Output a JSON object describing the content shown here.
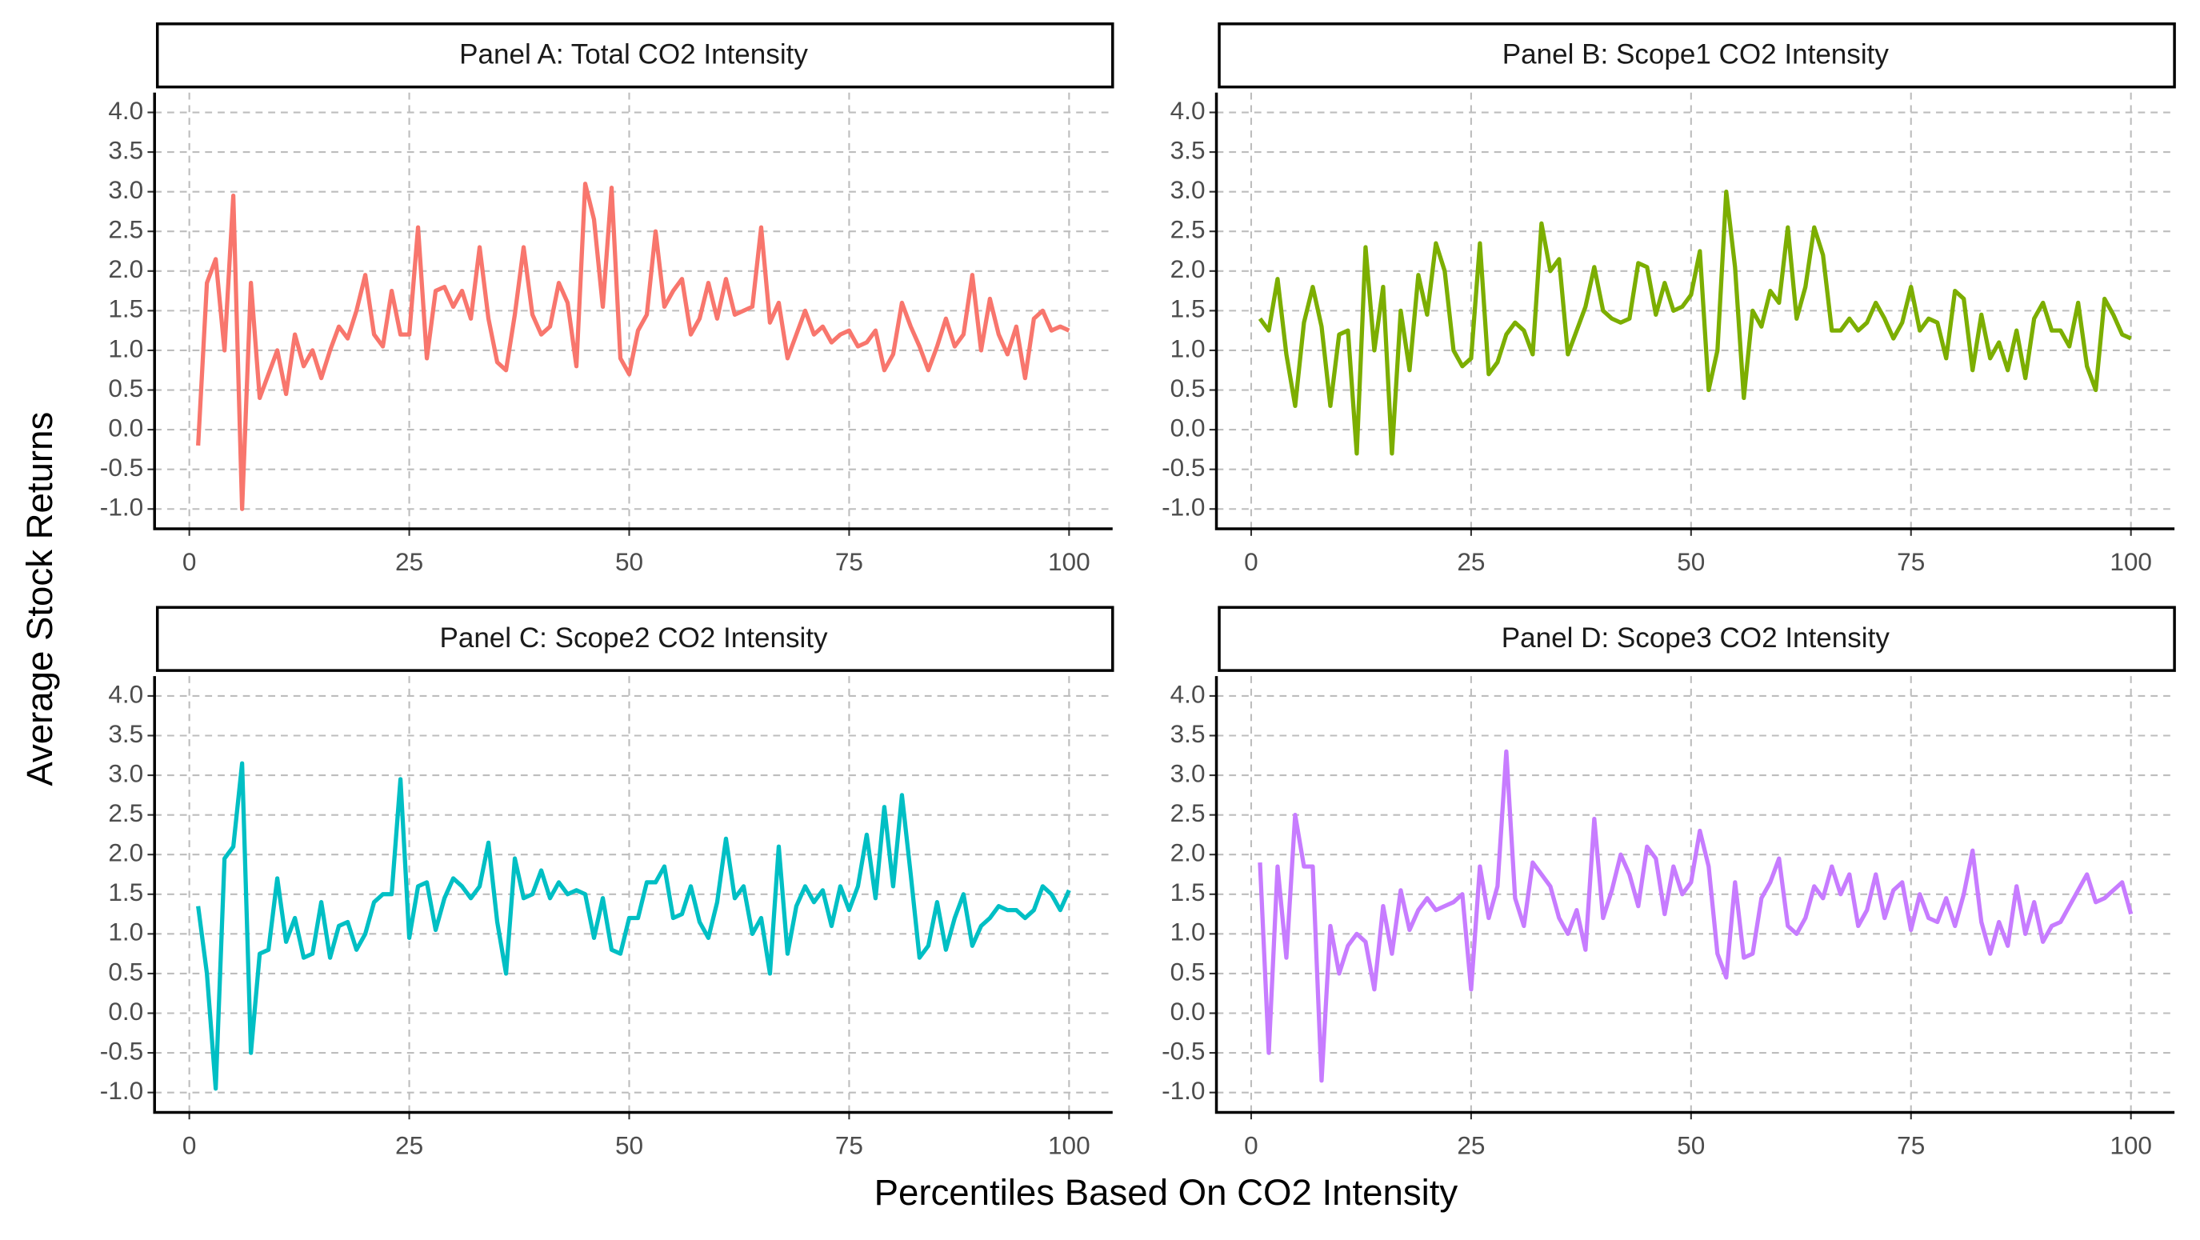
{
  "axis_labels": {
    "x": "Percentiles Based On CO2 Intensity",
    "y": "Average Stock Returns"
  },
  "chart_data": [
    {
      "type": "line",
      "title": "Panel A: Total CO2 Intensity",
      "color": "#F8766D",
      "grid": true,
      "x": [
        1,
        2,
        3,
        4,
        5,
        6,
        7,
        8,
        9,
        10,
        11,
        12,
        13,
        14,
        15,
        16,
        17,
        18,
        19,
        20,
        21,
        22,
        23,
        24,
        25,
        26,
        27,
        28,
        29,
        30,
        31,
        32,
        33,
        34,
        35,
        36,
        37,
        38,
        39,
        40,
        41,
        42,
        43,
        44,
        45,
        46,
        47,
        48,
        49,
        50,
        51,
        52,
        53,
        54,
        55,
        56,
        57,
        58,
        59,
        60,
        61,
        62,
        63,
        64,
        65,
        66,
        67,
        68,
        69,
        70,
        71,
        72,
        73,
        74,
        75,
        76,
        77,
        78,
        79,
        80,
        81,
        82,
        83,
        84,
        85,
        86,
        87,
        88,
        89,
        90,
        91,
        92,
        93,
        94,
        95,
        96,
        97,
        98,
        99,
        100
      ],
      "values": [
        -0.2,
        1.85,
        2.15,
        1.0,
        2.95,
        -1.0,
        1.85,
        0.4,
        0.7,
        1.0,
        0.45,
        1.2,
        0.8,
        1.0,
        0.65,
        1.0,
        1.3,
        1.15,
        1.5,
        1.95,
        1.2,
        1.05,
        1.75,
        1.2,
        1.2,
        2.55,
        0.9,
        1.75,
        1.8,
        1.55,
        1.75,
        1.4,
        2.3,
        1.4,
        0.85,
        0.75,
        1.45,
        2.3,
        1.45,
        1.2,
        1.3,
        1.85,
        1.6,
        0.8,
        3.1,
        2.65,
        1.55,
        3.05,
        0.9,
        0.7,
        1.25,
        1.45,
        2.5,
        1.55,
        1.75,
        1.9,
        1.2,
        1.4,
        1.85,
        1.4,
        1.9,
        1.45,
        1.5,
        1.55,
        2.55,
        1.35,
        1.6,
        0.9,
        1.2,
        1.5,
        1.2,
        1.3,
        1.1,
        1.2,
        1.25,
        1.05,
        1.1,
        1.25,
        0.75,
        0.95,
        1.6,
        1.3,
        1.05,
        0.75,
        1.05,
        1.4,
        1.05,
        1.2,
        1.95,
        1.0,
        1.65,
        1.2,
        0.95,
        1.3,
        0.65,
        1.4,
        1.5,
        1.25,
        1.3,
        1.25
      ],
      "xlim": [
        -3.95,
        104.95
      ],
      "xticks": [
        0,
        25,
        50,
        75,
        100
      ],
      "ylim": [
        -1.25,
        4.25
      ],
      "yticks": [
        {
          "value": -1,
          "label": "-1.0"
        },
        -0.5,
        {
          "value": 0,
          "label": "0.0"
        },
        0.5,
        {
          "value": 1,
          "label": "1.0"
        },
        1.5,
        {
          "value": 2,
          "label": "2.0"
        },
        2.5,
        {
          "value": 3,
          "label": "3.0"
        },
        3.5,
        {
          "value": 4,
          "label": "4.0"
        }
      ]
    },
    {
      "type": "line",
      "title": "Panel B: Scope1 CO2 Intensity",
      "color": "#7CAE00",
      "grid": true,
      "x": [
        1,
        2,
        3,
        4,
        5,
        6,
        7,
        8,
        9,
        10,
        11,
        12,
        13,
        14,
        15,
        16,
        17,
        18,
        19,
        20,
        21,
        22,
        23,
        24,
        25,
        26,
        27,
        28,
        29,
        30,
        31,
        32,
        33,
        34,
        35,
        36,
        37,
        38,
        39,
        40,
        41,
        42,
        43,
        44,
        45,
        46,
        47,
        48,
        49,
        50,
        51,
        52,
        53,
        54,
        55,
        56,
        57,
        58,
        59,
        60,
        61,
        62,
        63,
        64,
        65,
        66,
        67,
        68,
        69,
        70,
        71,
        72,
        73,
        74,
        75,
        76,
        77,
        78,
        79,
        80,
        81,
        82,
        83,
        84,
        85,
        86,
        87,
        88,
        89,
        90,
        91,
        92,
        93,
        94,
        95,
        96,
        97,
        98,
        99,
        100
      ],
      "values": [
        1.4,
        1.25,
        1.9,
        0.95,
        0.3,
        1.35,
        1.8,
        1.3,
        0.3,
        1.2,
        1.25,
        -0.3,
        2.3,
        1.0,
        1.8,
        -0.3,
        1.5,
        0.75,
        1.95,
        1.45,
        2.35,
        2.0,
        1.0,
        0.8,
        0.9,
        2.35,
        0.7,
        0.85,
        1.2,
        1.35,
        1.25,
        0.95,
        2.6,
        2.0,
        2.15,
        0.95,
        1.25,
        1.55,
        2.05,
        1.5,
        1.4,
        1.35,
        1.4,
        2.1,
        2.05,
        1.45,
        1.85,
        1.5,
        1.55,
        1.7,
        2.25,
        0.5,
        1.0,
        3.0,
        2.05,
        0.4,
        1.5,
        1.3,
        1.75,
        1.6,
        2.55,
        1.4,
        1.8,
        2.55,
        2.2,
        1.25,
        1.25,
        1.4,
        1.25,
        1.35,
        1.6,
        1.4,
        1.15,
        1.35,
        1.8,
        1.25,
        1.4,
        1.35,
        0.9,
        1.75,
        1.65,
        0.75,
        1.45,
        0.9,
        1.1,
        0.75,
        1.25,
        0.65,
        1.4,
        1.6,
        1.25,
        1.25,
        1.05,
        1.6,
        0.8,
        0.5,
        1.65,
        1.45,
        1.2,
        1.15
      ],
      "xlim": [
        -3.95,
        104.95
      ],
      "xticks": [
        0,
        25,
        50,
        75,
        100
      ],
      "ylim": [
        -1.25,
        4.25
      ],
      "yticks": [
        {
          "value": -1,
          "label": "-1.0"
        },
        -0.5,
        {
          "value": 0,
          "label": "0.0"
        },
        0.5,
        {
          "value": 1,
          "label": "1.0"
        },
        1.5,
        {
          "value": 2,
          "label": "2.0"
        },
        2.5,
        {
          "value": 3,
          "label": "3.0"
        },
        3.5,
        {
          "value": 4,
          "label": "4.0"
        }
      ]
    },
    {
      "type": "line",
      "title": "Panel C: Scope2 CO2 Intensity",
      "color": "#00BFC4",
      "grid": true,
      "x": [
        1,
        2,
        3,
        4,
        5,
        6,
        7,
        8,
        9,
        10,
        11,
        12,
        13,
        14,
        15,
        16,
        17,
        18,
        19,
        20,
        21,
        22,
        23,
        24,
        25,
        26,
        27,
        28,
        29,
        30,
        31,
        32,
        33,
        34,
        35,
        36,
        37,
        38,
        39,
        40,
        41,
        42,
        43,
        44,
        45,
        46,
        47,
        48,
        49,
        50,
        51,
        52,
        53,
        54,
        55,
        56,
        57,
        58,
        59,
        60,
        61,
        62,
        63,
        64,
        65,
        66,
        67,
        68,
        69,
        70,
        71,
        72,
        73,
        74,
        75,
        76,
        77,
        78,
        79,
        80,
        81,
        82,
        83,
        84,
        85,
        86,
        87,
        88,
        89,
        90,
        91,
        92,
        93,
        94,
        95,
        96,
        97,
        98,
        99,
        100
      ],
      "values": [
        1.35,
        0.5,
        -0.95,
        1.95,
        2.1,
        3.15,
        -0.5,
        0.75,
        0.8,
        1.7,
        0.9,
        1.2,
        0.7,
        0.75,
        1.4,
        0.7,
        1.1,
        1.15,
        0.8,
        1.0,
        1.4,
        1.5,
        1.5,
        2.95,
        0.95,
        1.6,
        1.65,
        1.05,
        1.45,
        1.7,
        1.6,
        1.45,
        1.6,
        2.15,
        1.15,
        0.5,
        1.95,
        1.45,
        1.5,
        1.8,
        1.45,
        1.65,
        1.5,
        1.55,
        1.5,
        0.95,
        1.45,
        0.8,
        0.75,
        1.2,
        1.2,
        1.65,
        1.65,
        1.85,
        1.2,
        1.25,
        1.6,
        1.15,
        0.95,
        1.4,
        2.2,
        1.45,
        1.6,
        1.0,
        1.2,
        0.5,
        2.1,
        0.75,
        1.35,
        1.6,
        1.4,
        1.55,
        1.1,
        1.6,
        1.3,
        1.6,
        2.25,
        1.45,
        2.6,
        1.6,
        2.75,
        1.75,
        0.7,
        0.85,
        1.4,
        0.8,
        1.2,
        1.5,
        0.85,
        1.1,
        1.2,
        1.35,
        1.3,
        1.3,
        1.2,
        1.3,
        1.6,
        1.5,
        1.3,
        1.55
      ],
      "xlim": [
        -3.95,
        104.95
      ],
      "xticks": [
        0,
        25,
        50,
        75,
        100
      ],
      "ylim": [
        -1.25,
        4.25
      ],
      "yticks": [
        {
          "value": -1,
          "label": "-1.0"
        },
        -0.5,
        {
          "value": 0,
          "label": "0.0"
        },
        0.5,
        {
          "value": 1,
          "label": "1.0"
        },
        1.5,
        {
          "value": 2,
          "label": "2.0"
        },
        2.5,
        {
          "value": 3,
          "label": "3.0"
        },
        3.5,
        {
          "value": 4,
          "label": "4.0"
        }
      ]
    },
    {
      "type": "line",
      "title": "Panel D: Scope3 CO2 Intensity",
      "color": "#C77CFF",
      "grid": true,
      "x": [
        1,
        2,
        3,
        4,
        5,
        6,
        7,
        8,
        9,
        10,
        11,
        12,
        13,
        14,
        15,
        16,
        17,
        18,
        19,
        20,
        21,
        22,
        23,
        24,
        25,
        26,
        27,
        28,
        29,
        30,
        31,
        32,
        33,
        34,
        35,
        36,
        37,
        38,
        39,
        40,
        41,
        42,
        43,
        44,
        45,
        46,
        47,
        48,
        49,
        50,
        51,
        52,
        53,
        54,
        55,
        56,
        57,
        58,
        59,
        60,
        61,
        62,
        63,
        64,
        65,
        66,
        67,
        68,
        69,
        70,
        71,
        72,
        73,
        74,
        75,
        76,
        77,
        78,
        79,
        80,
        81,
        82,
        83,
        84,
        85,
        86,
        87,
        88,
        89,
        90,
        91,
        92,
        93,
        94,
        95,
        96,
        97,
        98,
        99,
        100
      ],
      "values": [
        1.9,
        -0.5,
        1.85,
        0.7,
        2.5,
        1.85,
        1.85,
        -0.85,
        1.1,
        0.5,
        0.85,
        1.0,
        0.9,
        0.3,
        1.35,
        0.75,
        1.55,
        1.05,
        1.3,
        1.45,
        1.3,
        1.35,
        1.4,
        1.5,
        0.3,
        1.85,
        1.2,
        1.6,
        3.3,
        1.45,
        1.1,
        1.9,
        1.75,
        1.6,
        1.2,
        1.0,
        1.3,
        0.8,
        2.45,
        1.2,
        1.55,
        2.0,
        1.75,
        1.35,
        2.1,
        1.95,
        1.25,
        1.85,
        1.5,
        1.65,
        2.3,
        1.85,
        0.75,
        0.45,
        1.65,
        0.7,
        0.75,
        1.45,
        1.65,
        1.95,
        1.1,
        1.0,
        1.2,
        1.6,
        1.45,
        1.85,
        1.5,
        1.75,
        1.1,
        1.3,
        1.75,
        1.2,
        1.55,
        1.65,
        1.05,
        1.5,
        1.2,
        1.15,
        1.45,
        1.1,
        1.5,
        2.05,
        1.15,
        0.75,
        1.15,
        0.85,
        1.6,
        1.0,
        1.4,
        0.9,
        1.1,
        1.15,
        1.35,
        1.55,
        1.75,
        1.4,
        1.45,
        1.55,
        1.65,
        1.25
      ],
      "xlim": [
        -3.95,
        104.95
      ],
      "xticks": [
        0,
        25,
        50,
        75,
        100
      ],
      "ylim": [
        -1.25,
        4.25
      ],
      "yticks": [
        {
          "value": -1,
          "label": "-1.0"
        },
        -0.5,
        {
          "value": 0,
          "label": "0.0"
        },
        0.5,
        {
          "value": 1,
          "label": "1.0"
        },
        1.5,
        {
          "value": 2,
          "label": "2.0"
        },
        2.5,
        {
          "value": 3,
          "label": "3.0"
        },
        3.5,
        {
          "value": 4,
          "label": "4.0"
        }
      ]
    }
  ]
}
